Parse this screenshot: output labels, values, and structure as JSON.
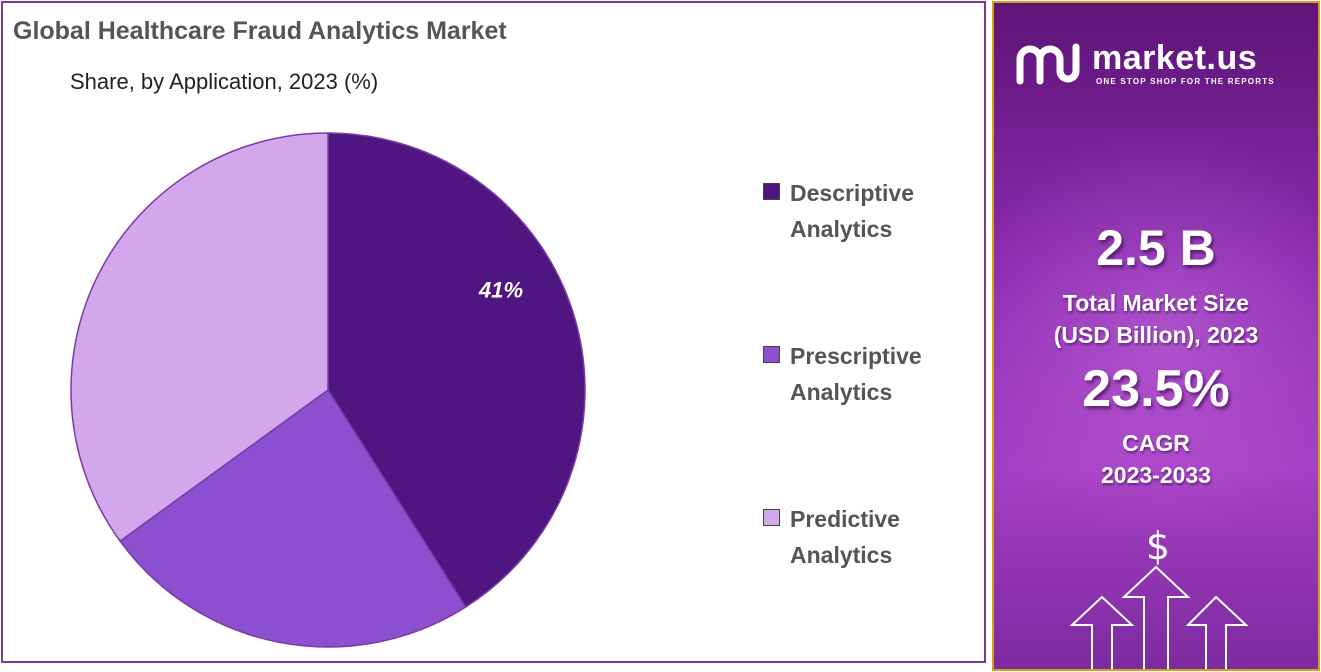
{
  "title": "Global Healthcare Fraud Analytics Market",
  "subtitle": "Share, by Application, 2023 (%)",
  "chart_data": {
    "type": "pie",
    "title": "Global Healthcare Fraud Analytics Market",
    "subtitle": "Share, by Application, 2023 (%)",
    "categories": [
      "Descriptive Analytics",
      "Prescriptive Analytics",
      "Predictive Analytics"
    ],
    "values": [
      41,
      24,
      35
    ],
    "colors": [
      "#4f1682",
      "#8b4fd0",
      "#d2a7ec"
    ],
    "data_labels": [
      "41%",
      "",
      ""
    ],
    "legend_position": "right"
  },
  "legend": [
    {
      "line1": "Descriptive",
      "line2": "Analytics",
      "color": "#4f1682"
    },
    {
      "line1": "Prescriptive",
      "line2": "Analytics",
      "color": "#8b4fd0"
    },
    {
      "line1": "Predictive",
      "line2": "Analytics",
      "color": "#d2a7ec"
    }
  ],
  "brand": {
    "name": "market.us",
    "tagline": "ONE STOP SHOP FOR THE REPORTS"
  },
  "stats": {
    "market_size_value": "2.5 B",
    "market_size_label_line1": "Total Market Size",
    "market_size_label_line2": "(USD Billion), 2023",
    "cagr_value": "23.5%",
    "cagr_label_line1": "CAGR",
    "cagr_label_line2": "2023-2033"
  },
  "decor": {
    "currency_symbol": "$"
  }
}
